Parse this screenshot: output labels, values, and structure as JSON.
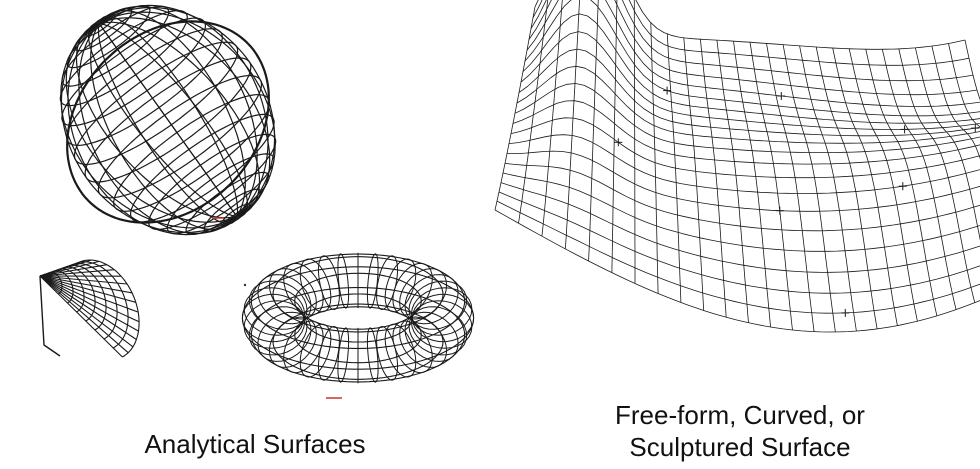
{
  "captions": {
    "analytical": "Analytical Surfaces",
    "freeform_line1": "Free-form, Curved, or",
    "freeform_line2": "Sculptured Surface"
  },
  "colors": {
    "wire": "#1a1a1a",
    "background": "#ffffff",
    "marker": "#c0392b"
  },
  "figures": [
    "ellipsoid",
    "cone",
    "torus",
    "free-form surface"
  ]
}
